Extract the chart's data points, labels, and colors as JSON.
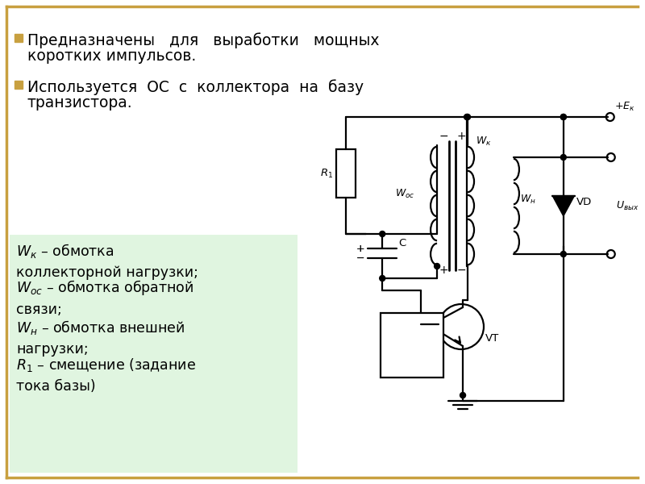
{
  "bg_color": "#ffffff",
  "border_color": "#c8a040",
  "bullet_color": "#c8a040",
  "circuit_color": "#000000",
  "legend_bg": "#e0f5e0",
  "lw": 1.6,
  "text1_line1": "Предназначены   для   выработки   мощных",
  "text1_line2": "коротких импульсов.",
  "text2_line1": "Используется  ОС  с  коллектора  на  базу",
  "text2_line2": "транзистора.",
  "legend1": "Wк – обмотка\nколлекторной нагрузки;",
  "legend2": "Wос – обмотка обратной\nсвязи;",
  "legend3": "Wн – обмотка внешней\nнагрузки;",
  "legend4": "R₁ – смещение (задание\nтока базы)"
}
